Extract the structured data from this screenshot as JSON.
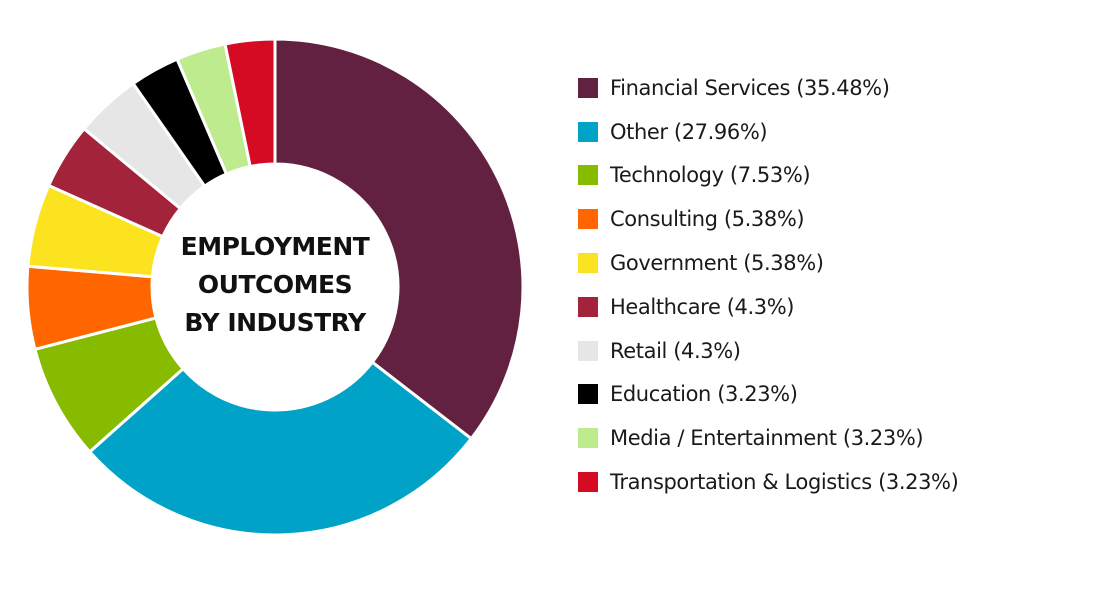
{
  "chart_data": {
    "type": "pie",
    "title": "EMPLOYMENT OUTCOMES BY INDUSTRY",
    "title_lines": [
      "EMPLOYMENT",
      "OUTCOMES",
      "BY INDUSTRY"
    ],
    "legend_position": "right",
    "slices": [
      {
        "name": "Financial Services",
        "value": 35.48,
        "label": "Financial Services (35.48%)",
        "color": "#632142"
      },
      {
        "name": "Other",
        "value": 27.96,
        "label": "Other (27.96%)",
        "color": "#00a3c7"
      },
      {
        "name": "Technology",
        "value": 7.53,
        "label": "Technology (7.53%)",
        "color": "#86bb00"
      },
      {
        "name": "Consulting",
        "value": 5.38,
        "label": "Consulting (5.38%)",
        "color": "#ff6600"
      },
      {
        "name": "Government",
        "value": 5.38,
        "label": "Government (5.38%)",
        "color": "#fbe41f"
      },
      {
        "name": "Healthcare",
        "value": 4.3,
        "label": "Healthcare (4.3%)",
        "color": "#a3243a"
      },
      {
        "name": "Retail",
        "value": 4.3,
        "label": "Retail (4.3%)",
        "color": "#e6e6e6"
      },
      {
        "name": "Education",
        "value": 3.23,
        "label": "Education (3.23%)",
        "color": "#000000"
      },
      {
        "name": "Media / Entertainment",
        "value": 3.23,
        "label": "Media / Entertainment (3.23%)",
        "color": "#bdeb8e"
      },
      {
        "name": "Transportation & Logistics",
        "value": 3.23,
        "label": "Transportation & Logistics (3.23%)",
        "color": "#d50b24"
      }
    ]
  }
}
